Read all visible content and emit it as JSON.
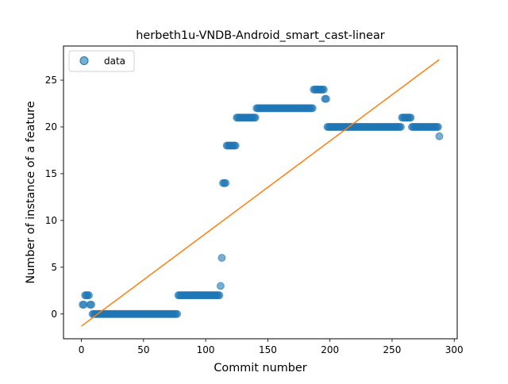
{
  "chart_data": {
    "type": "scatter",
    "title": "herbeth1u-VNDB-Android_smart_cast-linear",
    "xlabel": "Commit number",
    "ylabel": "Number of instance of a feature",
    "xlim": [
      -14.4,
      302.4
    ],
    "ylim": [
      -2.65,
      28.65
    ],
    "xticks": [
      0,
      50,
      100,
      150,
      200,
      250,
      300
    ],
    "yticks": [
      0,
      5,
      10,
      15,
      20,
      25
    ],
    "grid": false,
    "legend": {
      "position": "top-left",
      "entries": [
        "data"
      ]
    },
    "series": [
      {
        "name": "data",
        "kind": "points",
        "color": "#1f77b4",
        "segments": [
          {
            "x_start": 1,
            "x_end": 2,
            "y": 1
          },
          {
            "x_start": 3,
            "x_end": 6,
            "y": 2
          },
          {
            "x_start": 7,
            "x_end": 8,
            "y": 1
          },
          {
            "x_start": 9,
            "x_end": 77,
            "y": 0
          },
          {
            "x_start": 78,
            "x_end": 111,
            "y": 2
          },
          {
            "x_start": 112,
            "x_end": 112,
            "y": 3
          },
          {
            "x_start": 113,
            "x_end": 113,
            "y": 6
          },
          {
            "x_start": 114,
            "x_end": 116,
            "y": 14
          },
          {
            "x_start": 117,
            "x_end": 124,
            "y": 18
          },
          {
            "x_start": 125,
            "x_end": 140,
            "y": 21
          },
          {
            "x_start": 141,
            "x_end": 186,
            "y": 22
          },
          {
            "x_start": 187,
            "x_end": 195,
            "y": 24
          },
          {
            "x_start": 196,
            "x_end": 197,
            "y": 23
          },
          {
            "x_start": 198,
            "x_end": 257,
            "y": 20
          },
          {
            "x_start": 258,
            "x_end": 265,
            "y": 21
          },
          {
            "x_start": 266,
            "x_end": 287,
            "y": 20
          },
          {
            "x_start": 288,
            "x_end": 288,
            "y": 19
          }
        ]
      },
      {
        "name": "",
        "kind": "line",
        "color": "#ff7f0e",
        "x": [
          0,
          288
        ],
        "y": [
          -1.3,
          27.2
        ]
      }
    ]
  }
}
